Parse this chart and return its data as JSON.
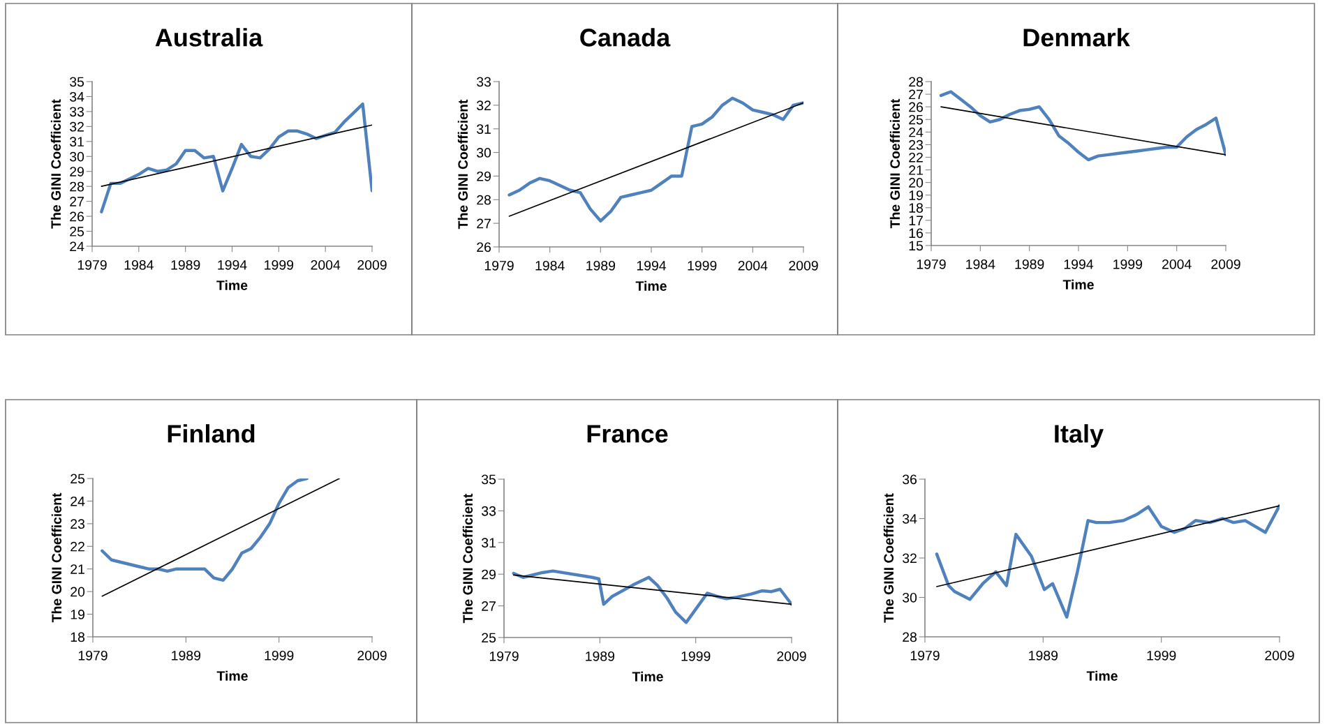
{
  "chart_data": [
    {
      "type": "line",
      "title": "Australia",
      "xlabel": "Time",
      "ylabel": "The GINI Coefficient",
      "xlim": [
        1979,
        2009
      ],
      "xticks": [
        1979,
        1984,
        1989,
        1994,
        1999,
        2004,
        2009
      ],
      "ylim": [
        24,
        35
      ],
      "yticks": [
        24,
        25,
        26,
        27,
        28,
        29,
        30,
        31,
        32,
        33,
        34,
        35
      ],
      "grid": false,
      "marker": "none",
      "line_style": "solid",
      "series": [
        {
          "color": "#4f81bd",
          "x": [
            1980,
            1981,
            1982,
            1983,
            1984,
            1985,
            1986,
            1987,
            1988,
            1989,
            1990,
            1991,
            1992,
            1993,
            1994,
            1995,
            1996,
            1997,
            1998,
            1999,
            2000,
            2001,
            2002,
            2003,
            2004,
            2005,
            2006,
            2007,
            2008,
            2009
          ],
          "values": [
            26.3,
            28.2,
            28.2,
            28.5,
            28.8,
            29.2,
            29.0,
            29.1,
            29.5,
            30.4,
            30.4,
            29.9,
            30.0,
            27.7,
            29.2,
            30.8,
            30.0,
            29.9,
            30.5,
            31.3,
            31.7,
            31.7,
            31.5,
            31.2,
            31.4,
            31.6,
            32.3,
            32.9,
            33.5,
            27.7
          ]
        },
        {
          "type": "line",
          "color": "#000000",
          "x": [
            1980,
            2009
          ],
          "values": [
            28.0,
            32.1
          ]
        }
      ]
    },
    {
      "type": "line",
      "title": "Canada",
      "xlabel": "Time",
      "ylabel": "The GINI Coefficient",
      "xlim": [
        1979,
        2009
      ],
      "xticks": [
        1979,
        1984,
        1989,
        1994,
        1999,
        2004,
        2009
      ],
      "ylim": [
        26,
        33
      ],
      "yticks": [
        26,
        27,
        28,
        29,
        30,
        31,
        32,
        33
      ],
      "grid": false,
      "marker": "none",
      "line_style": "solid",
      "series": [
        {
          "color": "#4f81bd",
          "x": [
            1980,
            1981,
            1982,
            1983,
            1984,
            1985,
            1986,
            1987,
            1988,
            1989,
            1990,
            1991,
            1992,
            1993,
            1994,
            1995,
            1996,
            1997,
            1998,
            1999,
            2000,
            2001,
            2002,
            2003,
            2004,
            2005,
            2006,
            2007,
            2008,
            2009
          ],
          "values": [
            28.2,
            28.4,
            28.7,
            28.9,
            28.8,
            28.6,
            28.4,
            28.3,
            27.6,
            27.1,
            27.5,
            28.1,
            28.2,
            28.3,
            28.4,
            28.7,
            29.0,
            29.0,
            31.1,
            31.2,
            31.5,
            32.0,
            32.3,
            32.1,
            31.8,
            31.7,
            31.6,
            31.4,
            32.0,
            32.1
          ]
        },
        {
          "type": "line",
          "color": "#000000",
          "x": [
            1980,
            2009
          ],
          "values": [
            27.3,
            32.1
          ]
        }
      ]
    },
    {
      "type": "line",
      "title": "Denmark",
      "xlabel": "Time",
      "ylabel": "The GINI Coefficient",
      "xlim": [
        1979,
        2009
      ],
      "xticks": [
        1979,
        1984,
        1989,
        1994,
        1999,
        2004,
        2009
      ],
      "ylim": [
        15,
        28
      ],
      "yticks": [
        15,
        16,
        17,
        18,
        19,
        20,
        21,
        22,
        23,
        24,
        25,
        26,
        27,
        28
      ],
      "grid": false,
      "marker": "none",
      "line_style": "solid",
      "series": [
        {
          "color": "#4f81bd",
          "x": [
            1980,
            1981,
            1982,
            1983,
            1984,
            1985,
            1986,
            1987,
            1988,
            1989,
            1990,
            1991,
            1992,
            1993,
            1994,
            1995,
            1996,
            1997,
            1998,
            1999,
            2000,
            2001,
            2002,
            2003,
            2004,
            2005,
            2006,
            2007,
            2008,
            2009
          ],
          "values": [
            26.9,
            27.2,
            26.6,
            26.0,
            25.3,
            24.8,
            25.0,
            25.4,
            25.7,
            25.8,
            26.0,
            25.0,
            23.7,
            23.1,
            22.4,
            21.8,
            22.1,
            22.2,
            22.3,
            22.4,
            22.5,
            22.6,
            22.7,
            22.8,
            22.8,
            23.6,
            24.2,
            24.6,
            25.1,
            22.2
          ]
        },
        {
          "type": "line",
          "color": "#000000",
          "x": [
            1980,
            2009
          ],
          "values": [
            26.0,
            22.2
          ]
        }
      ]
    },
    {
      "type": "line",
      "title": "Finland",
      "xlabel": "Time",
      "ylabel": "The GINI Coefficient",
      "xlim": [
        1979,
        2009
      ],
      "xticks": [
        1979,
        1989,
        1999,
        2009
      ],
      "ylim": [
        18,
        25
      ],
      "yticks": [
        18,
        19,
        20,
        21,
        22,
        23,
        24,
        25
      ],
      "grid": false,
      "marker": "none",
      "line_style": "solid",
      "series": [
        {
          "color": "#4f81bd",
          "x": [
            1980,
            1981,
            1982,
            1983,
            1984,
            1985,
            1986,
            1987,
            1988,
            1989,
            1990,
            1991,
            1992,
            1993,
            1994,
            1995,
            1996,
            1997,
            1998,
            1999,
            2000,
            2001,
            2002
          ],
          "values": [
            21.8,
            21.4,
            21.3,
            21.2,
            21.1,
            21.0,
            21.0,
            20.9,
            21.0,
            21.0,
            21.0,
            21.0,
            20.6,
            20.5,
            21.0,
            21.7,
            21.9,
            22.4,
            23.0,
            23.9,
            24.6,
            24.9,
            25.0
          ]
        },
        {
          "type": "line",
          "color": "#000000",
          "x": [
            1980,
            2005.5
          ],
          "values": [
            19.8,
            25.0
          ]
        }
      ]
    },
    {
      "type": "line",
      "title": "France",
      "xlabel": "Time",
      "ylabel": "The GINI Coefficient",
      "xlim": [
        1979,
        2009
      ],
      "xticks": [
        1979,
        1989,
        1999,
        2009
      ],
      "ylim": [
        25,
        35
      ],
      "yticks": [
        25,
        27,
        29,
        31,
        33,
        35
      ],
      "grid": false,
      "marker": "none",
      "line_style": "solid",
      "series": [
        {
          "color": "#4f81bd",
          "x": [
            1980.0,
            1981.0,
            1983.0,
            1984.1,
            1988.2,
            1988.9,
            1989.4,
            1990.3,
            1992.4,
            1994.1,
            1995.0,
            1996.0,
            1996.9,
            1998.0,
            1998.9,
            2000.2,
            2001.2,
            2002.2,
            2003.3,
            2004.8,
            2005.9,
            2006.9,
            2007.8,
            2009.0
          ],
          "values": [
            29.05,
            28.8,
            29.1,
            29.2,
            28.8,
            28.7,
            27.1,
            27.6,
            28.3,
            28.8,
            28.3,
            27.5,
            26.6,
            25.95,
            26.7,
            27.8,
            27.6,
            27.45,
            27.55,
            27.75,
            27.95,
            27.9,
            28.05,
            27.1
          ]
        },
        {
          "type": "line",
          "color": "#000000",
          "x": [
            1980,
            2009
          ],
          "values": [
            28.95,
            27.1
          ]
        }
      ]
    },
    {
      "type": "line",
      "title": "Italy",
      "xlabel": "Time",
      "ylabel": "The GINI Coefficient",
      "xlim": [
        1979,
        2009
      ],
      "xticks": [
        1979,
        1989,
        1999,
        2009
      ],
      "ylim": [
        28,
        36
      ],
      "yticks": [
        28,
        30,
        32,
        34,
        36
      ],
      "grid": false,
      "marker": "none",
      "line_style": "solid",
      "series": [
        {
          "color": "#4f81bd",
          "x": [
            1980.0,
            1981.0,
            1981.5,
            1982.8,
            1983.9,
            1985.0,
            1985.9,
            1986.7,
            1988.0,
            1989.1,
            1989.8,
            1991.0,
            1991.9,
            1992.8,
            1993.5,
            1994.6,
            1995.8,
            1996.9,
            1997.9,
            1999.0,
            2000.1,
            2001.0,
            2001.9,
            2003.1,
            2004.2,
            2005.1,
            2006.1,
            2007.8,
            2009.0
          ],
          "values": [
            32.2,
            30.6,
            30.3,
            29.9,
            30.7,
            31.3,
            30.6,
            33.2,
            32.1,
            30.4,
            30.7,
            29.0,
            31.3,
            33.9,
            33.8,
            33.8,
            33.9,
            34.2,
            34.6,
            33.6,
            33.3,
            33.5,
            33.9,
            33.8,
            34.0,
            33.8,
            33.9,
            33.3,
            34.65
          ]
        },
        {
          "type": "line",
          "color": "#000000",
          "x": [
            1980,
            2009
          ],
          "values": [
            30.55,
            34.65
          ]
        }
      ]
    }
  ]
}
